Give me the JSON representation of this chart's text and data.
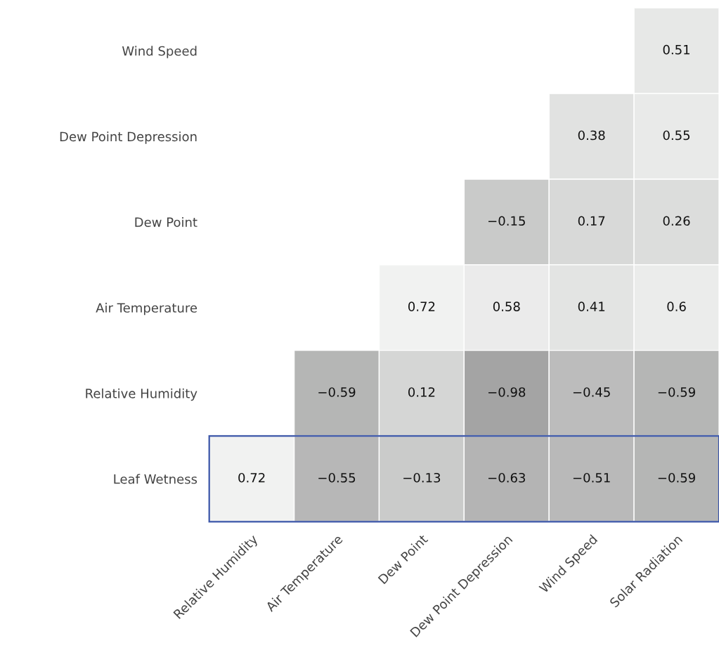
{
  "chart_data": {
    "type": "heatmap",
    "categories": [
      "Relative Humidity",
      "Air Temperature",
      "Dew Point",
      "Dew Point Depression",
      "Wind Speed",
      "Solar Radiation"
    ],
    "y_categories": [
      "Wind Speed",
      "Dew Point Depression",
      "Dew Point",
      "Air Temperature",
      "Relative Humidity",
      "Leaf Wetness"
    ],
    "cells": [
      [
        null,
        null,
        null,
        null,
        null,
        0.51
      ],
      [
        null,
        null,
        null,
        null,
        0.38,
        0.55
      ],
      [
        null,
        null,
        null,
        -0.15,
        0.17,
        0.26
      ],
      [
        null,
        null,
        0.72,
        0.58,
        0.41,
        0.6
      ],
      [
        null,
        -0.59,
        0.12,
        -0.98,
        -0.45,
        -0.59
      ],
      [
        0.72,
        -0.55,
        -0.13,
        -0.63,
        -0.51,
        -0.59
      ]
    ],
    "data_labels": true
  }
}
